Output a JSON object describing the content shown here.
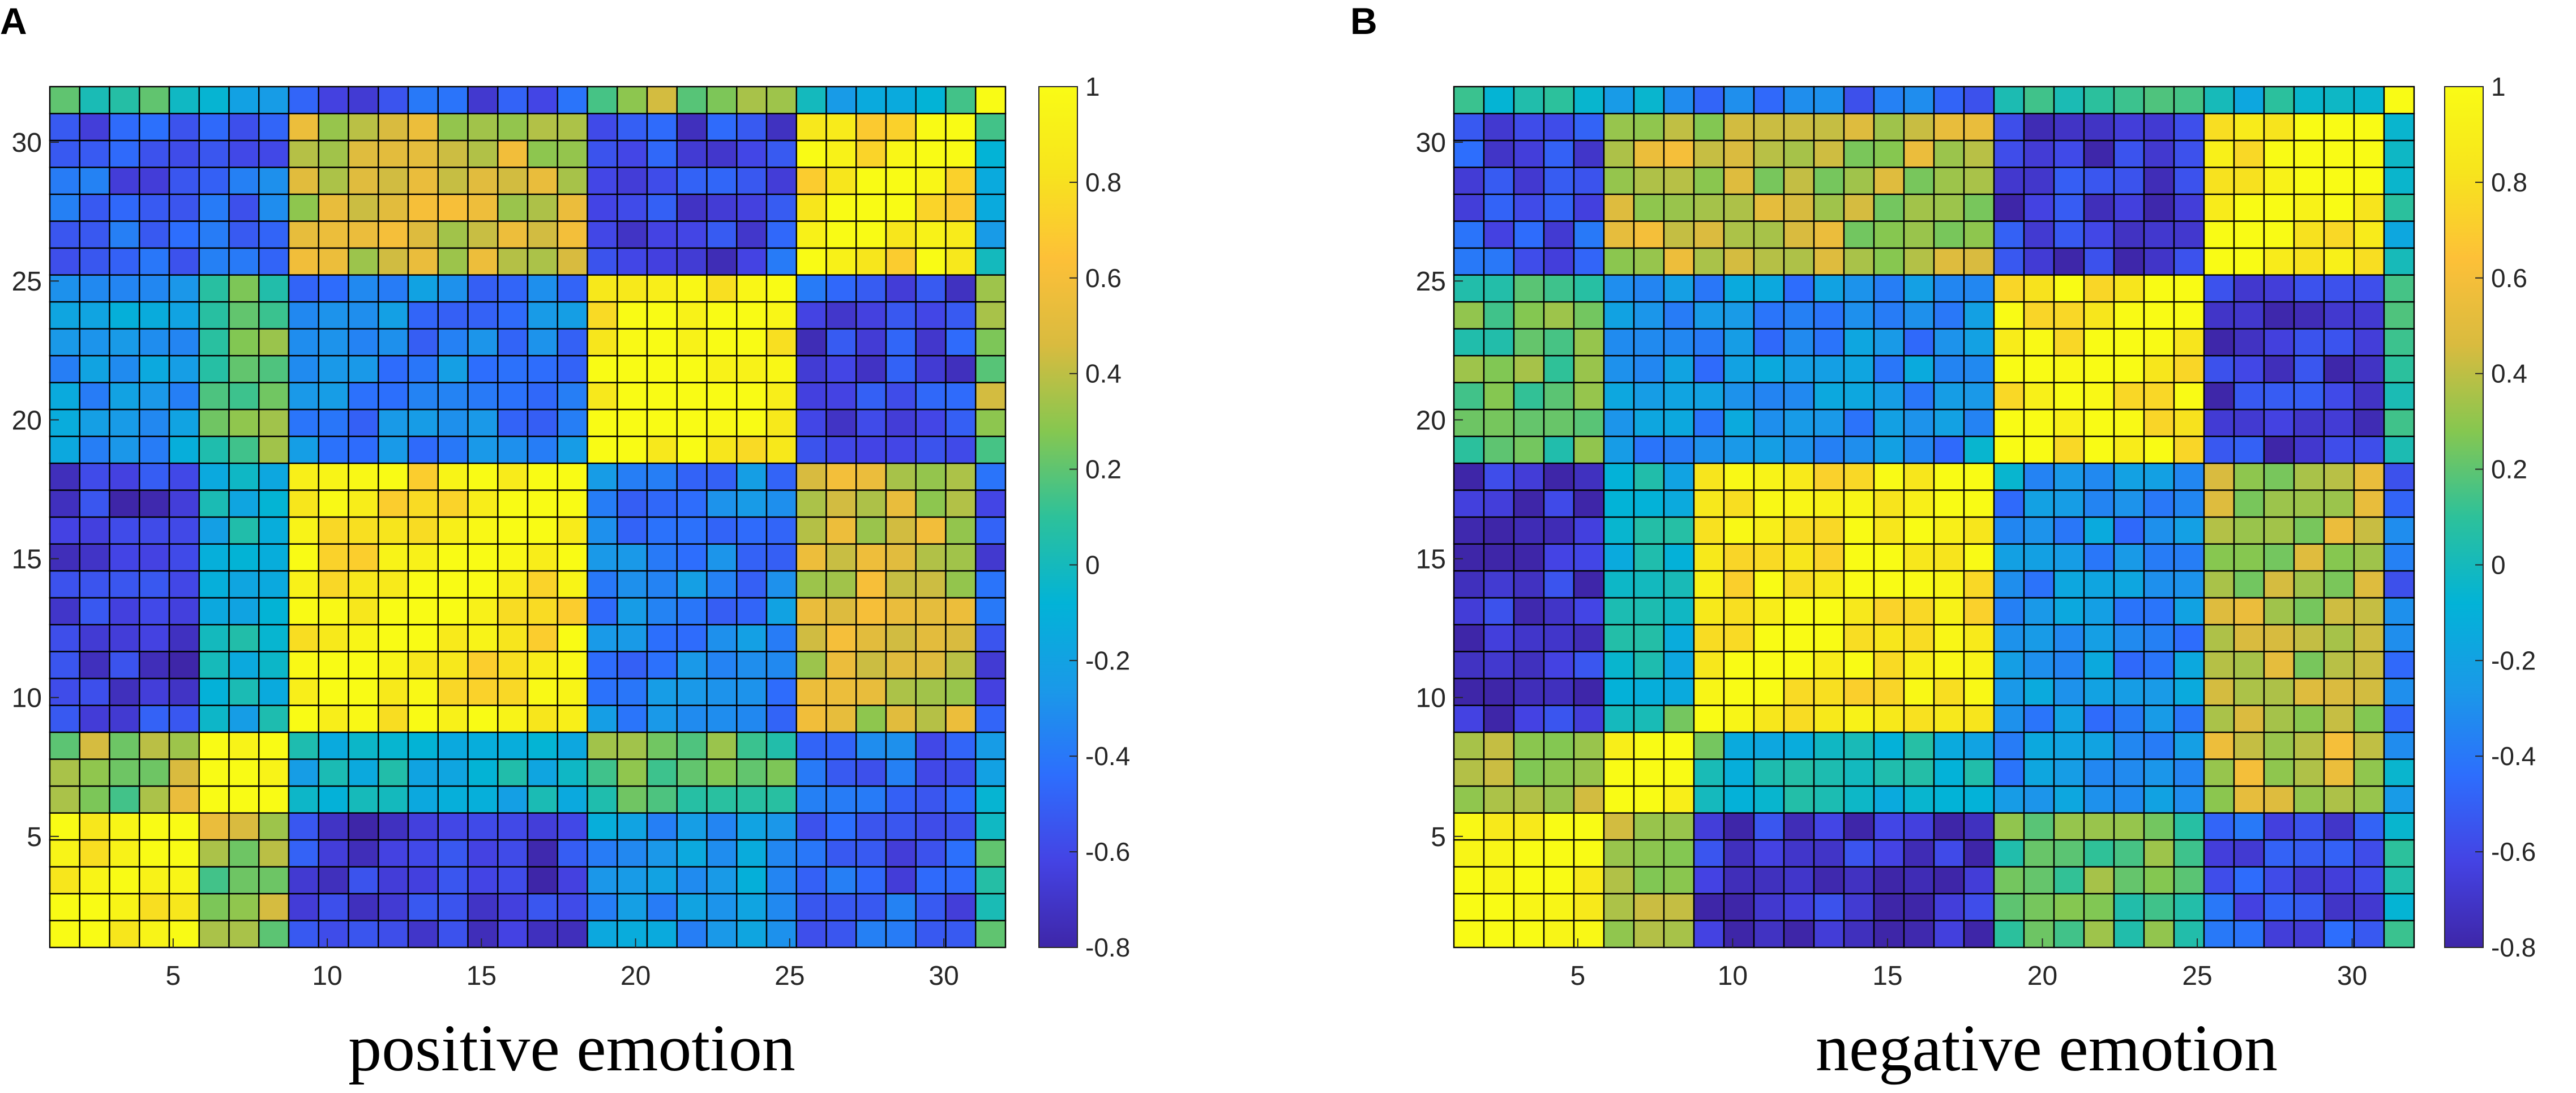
{
  "colors": {
    "colormap": [
      "#3e26a8",
      "#4443e4",
      "#2d6efd",
      "#1a99e8",
      "#02b3d7",
      "#2dc19a",
      "#86c750",
      "#d9bb3f",
      "#fdc038",
      "#f7e41d",
      "#f9fb15"
    ],
    "grid_line": "#000000",
    "axis_text": "#262626"
  },
  "chart_data": [
    {
      "type": "heatmap",
      "panel_label": "A",
      "caption": "positive emotion",
      "size": 32,
      "xlim": [
        1,
        32
      ],
      "ylim": [
        1,
        32
      ],
      "xticks": [
        5,
        10,
        15,
        20,
        25,
        30
      ],
      "yticks": [
        5,
        10,
        15,
        20,
        25,
        30
      ],
      "xtick_labels": [
        "5",
        "10",
        "15",
        "20",
        "25",
        "30"
      ],
      "ytick_labels": [
        "5",
        "10",
        "15",
        "20",
        "25",
        "30"
      ],
      "colorbar": {
        "min": -0.8,
        "max": 1,
        "ticks": [
          1,
          0.8,
          0.6,
          0.4,
          0.2,
          0,
          -0.2,
          -0.4,
          -0.6,
          -0.8
        ],
        "labels": [
          "1",
          "0.8",
          "0.6",
          "0.4",
          "0.2",
          "0",
          "-0.2",
          "-0.4",
          "-0.6",
          "-0.8"
        ]
      },
      "pattern_blocks": [
        [
          1,
          5
        ],
        [
          6,
          8
        ],
        [
          9,
          18
        ],
        [
          19,
          25
        ],
        [
          26,
          31
        ],
        [
          32,
          32
        ]
      ],
      "pattern_block_values": [
        [
          0.9,
          0.3,
          -0.65,
          -0.25,
          -0.5,
          0.1
        ],
        [
          0.3,
          0.85,
          -0.1,
          0.2,
          -0.45,
          -0.2
        ],
        [
          -0.65,
          -0.1,
          0.85,
          -0.35,
          0.45,
          -0.55
        ],
        [
          -0.25,
          0.2,
          -0.35,
          0.9,
          -0.6,
          0.3
        ],
        [
          -0.5,
          -0.45,
          0.45,
          -0.6,
          0.85,
          -0.1
        ],
        [
          0.1,
          -0.2,
          -0.55,
          0.3,
          -0.1,
          1.0
        ]
      ]
    },
    {
      "type": "heatmap",
      "panel_label": "B",
      "caption": "negative emotion",
      "size": 32,
      "xlim": [
        1,
        32
      ],
      "ylim": [
        1,
        32
      ],
      "xticks": [
        5,
        10,
        15,
        20,
        25,
        30
      ],
      "yticks": [
        5,
        10,
        15,
        20,
        25,
        30
      ],
      "xtick_labels": [
        "5",
        "10",
        "15",
        "20",
        "25",
        "30"
      ],
      "ytick_labels": [
        "5",
        "10",
        "15",
        "20",
        "25",
        "30"
      ],
      "colorbar": {
        "min": -0.8,
        "max": 1,
        "ticks": [
          1,
          0.8,
          0.6,
          0.4,
          0.2,
          0,
          -0.2,
          -0.4,
          -0.6,
          -0.8
        ],
        "labels": [
          "1",
          "0.8",
          "0.6",
          "0.4",
          "0.2",
          "0",
          "-0.2",
          "-0.4",
          "-0.6",
          "-0.8"
        ]
      },
      "pattern_blocks": [
        [
          1,
          5
        ],
        [
          6,
          8
        ],
        [
          9,
          18
        ],
        [
          19,
          25
        ],
        [
          26,
          31
        ],
        [
          32,
          32
        ]
      ],
      "pattern_block_values": [
        [
          0.9,
          0.35,
          -0.7,
          0.2,
          -0.55,
          0.0
        ],
        [
          0.35,
          0.85,
          -0.05,
          -0.3,
          0.45,
          -0.2
        ],
        [
          -0.7,
          -0.05,
          0.85,
          -0.3,
          0.4,
          -0.45
        ],
        [
          0.2,
          -0.3,
          -0.3,
          0.9,
          -0.65,
          0.1
        ],
        [
          -0.55,
          0.45,
          0.4,
          -0.65,
          0.85,
          -0.05
        ],
        [
          0.0,
          -0.2,
          -0.45,
          0.1,
          -0.05,
          1.0
        ]
      ]
    }
  ]
}
